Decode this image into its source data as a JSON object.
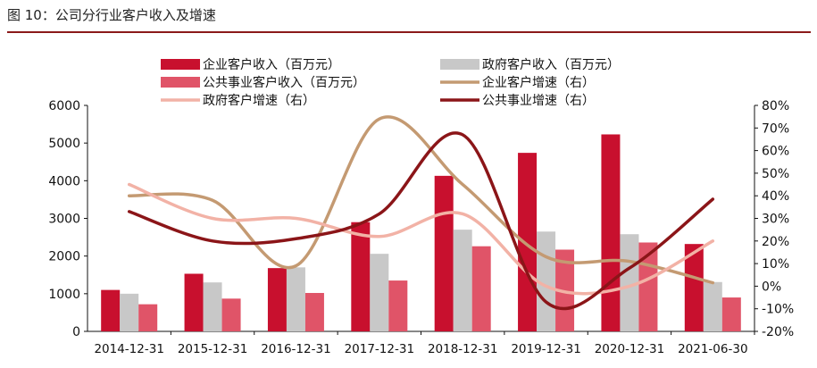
{
  "figure": {
    "title": "图 10：公司分行业客户收入及增速"
  },
  "colors": {
    "enterprise_rev": "#c8102e",
    "gov_rev": "#c8c8c8",
    "public_rev": "#e05468",
    "enterprise_growth": "#c49a72",
    "gov_growth": "#f2b2a6",
    "public_growth": "#8b1518"
  },
  "chart_data": {
    "type": "bar",
    "categories": [
      "2014-12-31",
      "2015-12-31",
      "2016-12-31",
      "2017-12-31",
      "2018-12-31",
      "2019-12-31",
      "2020-12-31",
      "2021-06-30"
    ],
    "ylim": [
      0,
      6000
    ],
    "y_ticks": [
      "0",
      "1000",
      "2000",
      "3000",
      "4000",
      "5000",
      "6000"
    ],
    "y2lim": [
      -20,
      80
    ],
    "y2_ticks": [
      "-20%",
      "-10%",
      "0%",
      "10%",
      "20%",
      "30%",
      "40%",
      "50%",
      "60%",
      "70%",
      "80%"
    ],
    "series": [
      {
        "name": "企业客户收入（百万元）",
        "type": "bar",
        "axis": "left",
        "values": [
          1100,
          1530,
          1680,
          2900,
          4130,
          4740,
          5230,
          2320
        ]
      },
      {
        "name": "政府客户收入（百万元）",
        "type": "bar",
        "axis": "left",
        "values": [
          1000,
          1300,
          1700,
          2060,
          2700,
          2650,
          2580,
          1310
        ]
      },
      {
        "name": "公共事业客户收入（百万元）",
        "type": "bar",
        "axis": "left",
        "values": [
          720,
          870,
          1020,
          1350,
          2260,
          2170,
          2360,
          900
        ]
      },
      {
        "name": "企业客户增速（右）",
        "type": "line",
        "axis": "right",
        "values": [
          40,
          38,
          9,
          74,
          45,
          13,
          11,
          1.5
        ]
      },
      {
        "name": "政府客户增速（右）",
        "type": "line",
        "axis": "right",
        "values": [
          45,
          30,
          30,
          22,
          32,
          0,
          0,
          20
        ]
      },
      {
        "name": "公共事业增速（右）",
        "type": "line",
        "axis": "right",
        "values": [
          33,
          20,
          21,
          32,
          67,
          -7,
          8,
          38.5
        ]
      }
    ],
    "legend_position": "top",
    "grid": false
  }
}
